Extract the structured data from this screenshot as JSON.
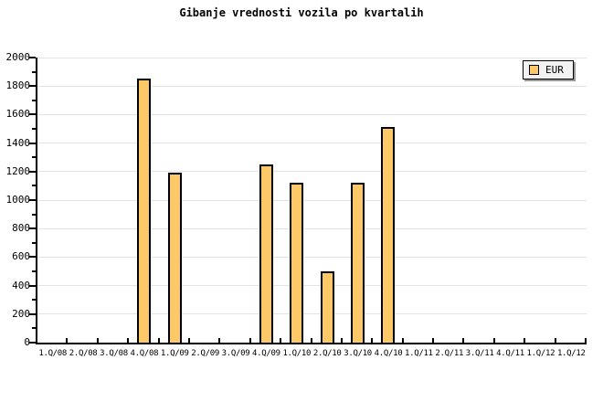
{
  "title": "Gibanje vrednosti vozila po kvartalih",
  "legend": {
    "items": [
      {
        "label": "EUR",
        "color": "#FDC968"
      }
    ]
  },
  "chart_data": {
    "type": "bar",
    "title": "Gibanje vrednosti vozila po kvartalih",
    "categories": [
      "1.Q/08",
      "2.Q/08",
      "3.Q/08",
      "4.Q/08",
      "1.Q/09",
      "2.Q/09",
      "3.Q/09",
      "4.Q/09",
      "1.Q/10",
      "2.Q/10",
      "3.Q/10",
      "4.Q/10",
      "1.Q/11",
      "2.Q/11",
      "3.Q/11",
      "4.Q/11",
      "1.Q/12",
      "1.Q/12"
    ],
    "series": [
      {
        "name": "EUR",
        "values": [
          null,
          null,
          null,
          1850,
          1190,
          null,
          null,
          1250,
          1120,
          500,
          1120,
          1510,
          null,
          null,
          null,
          null,
          null,
          null
        ]
      }
    ],
    "xlabel": "",
    "ylabel": "",
    "ylim": [
      0,
      2000
    ],
    "ytick_major_step": 200,
    "ytick_minor_step": 100,
    "grid": true,
    "legend_position": "top-right",
    "colors": {
      "bar_fill": "#FDC968",
      "bar_border": "#000000",
      "gridline": "#E3E3E3",
      "axis": "#000000",
      "legend_bg": "#F2F2F2",
      "legend_shadow": "#999999",
      "background": "#FFFFFF"
    }
  }
}
